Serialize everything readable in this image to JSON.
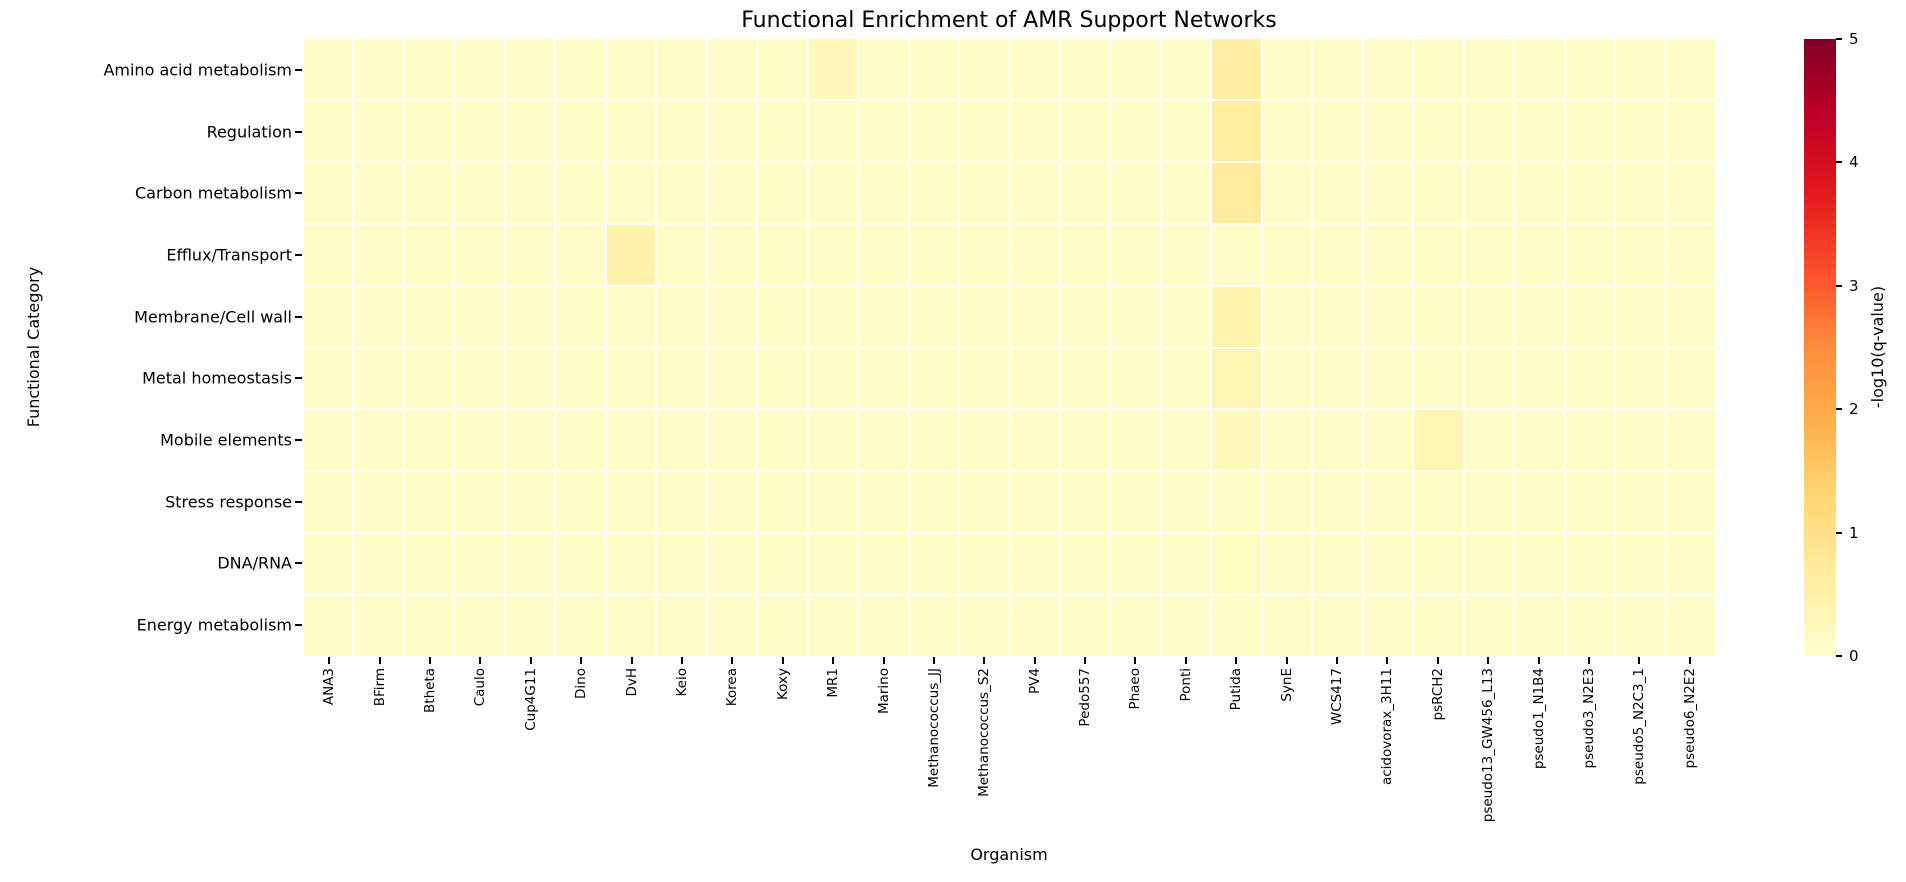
{
  "figure": {
    "background": "#ffffff",
    "text_color": "#000000"
  },
  "chart_data": {
    "type": "heatmap",
    "title": "Functional Enrichment of AMR Support Networks",
    "xlabel": "Organism",
    "ylabel": "Functional Category",
    "x_categories": [
      "ANA3",
      "BFirm",
      "Btheta",
      "Caulo",
      "Cup4G11",
      "Dino",
      "DvH",
      "Keio",
      "Korea",
      "Koxy",
      "MR1",
      "Marino",
      "Methanococcus_JJ",
      "Methanococcus_S2",
      "PV4",
      "Pedo557",
      "Phaeo",
      "Ponti",
      "Putida",
      "SynE",
      "WCS417",
      "acidovorax_3H11",
      "psRCH2",
      "pseudo13_GW456_L13",
      "pseudo1_N1B4",
      "pseudo3_N2E3",
      "pseudo5_N2C3_1",
      "pseudo6_N2E2"
    ],
    "y_categories": [
      "Amino acid metabolism",
      "Regulation",
      "Carbon metabolism",
      "Efflux/Transport",
      "Membrane/Cell wall",
      "Metal homeostasis",
      "Mobile elements",
      "Stress response",
      "DNA/RNA",
      "Energy metabolism"
    ],
    "values": [
      [
        0.1,
        0.1,
        0.1,
        0.1,
        0.1,
        0.1,
        0.1,
        0.1,
        0.1,
        0.1,
        0.25,
        0.1,
        0.1,
        0.1,
        0.1,
        0.1,
        0.1,
        0.1,
        0.58,
        0.1,
        0.1,
        0.1,
        0.1,
        0.1,
        0.1,
        0.1,
        0.1,
        0.1
      ],
      [
        0.1,
        0.1,
        0.1,
        0.1,
        0.1,
        0.1,
        0.1,
        0.1,
        0.1,
        0.1,
        0.1,
        0.1,
        0.1,
        0.1,
        0.1,
        0.1,
        0.1,
        0.1,
        0.62,
        0.1,
        0.1,
        0.1,
        0.1,
        0.1,
        0.1,
        0.1,
        0.1,
        0.1
      ],
      [
        0.1,
        0.1,
        0.1,
        0.1,
        0.1,
        0.1,
        0.1,
        0.1,
        0.1,
        0.1,
        0.1,
        0.1,
        0.1,
        0.1,
        0.1,
        0.1,
        0.1,
        0.1,
        0.68,
        0.1,
        0.1,
        0.1,
        0.1,
        0.1,
        0.1,
        0.1,
        0.1,
        0.1
      ],
      [
        0.1,
        0.1,
        0.1,
        0.1,
        0.1,
        0.1,
        0.5,
        0.1,
        0.1,
        0.1,
        0.1,
        0.1,
        0.1,
        0.1,
        0.1,
        0.1,
        0.1,
        0.1,
        0.1,
        0.1,
        0.1,
        0.1,
        0.1,
        0.1,
        0.1,
        0.1,
        0.1,
        0.1
      ],
      [
        0.1,
        0.1,
        0.1,
        0.1,
        0.1,
        0.1,
        0.1,
        0.1,
        0.1,
        0.1,
        0.1,
        0.1,
        0.1,
        0.1,
        0.1,
        0.1,
        0.1,
        0.1,
        0.42,
        0.1,
        0.1,
        0.1,
        0.1,
        0.1,
        0.1,
        0.1,
        0.1,
        0.1
      ],
      [
        0.1,
        0.1,
        0.1,
        0.1,
        0.1,
        0.1,
        0.1,
        0.1,
        0.1,
        0.1,
        0.1,
        0.1,
        0.1,
        0.1,
        0.1,
        0.1,
        0.1,
        0.1,
        0.36,
        0.1,
        0.1,
        0.1,
        0.1,
        0.1,
        0.1,
        0.1,
        0.1,
        0.1
      ],
      [
        0.1,
        0.1,
        0.1,
        0.1,
        0.1,
        0.1,
        0.1,
        0.1,
        0.1,
        0.1,
        0.1,
        0.1,
        0.1,
        0.1,
        0.1,
        0.1,
        0.1,
        0.1,
        0.2,
        0.1,
        0.1,
        0.1,
        0.38,
        0.1,
        0.1,
        0.1,
        0.1,
        0.1
      ],
      [
        0.1,
        0.1,
        0.1,
        0.1,
        0.1,
        0.1,
        0.1,
        0.1,
        0.1,
        0.1,
        0.1,
        0.1,
        0.1,
        0.1,
        0.1,
        0.1,
        0.1,
        0.1,
        0.1,
        0.1,
        0.1,
        0.1,
        0.1,
        0.1,
        0.1,
        0.1,
        0.1,
        0.1
      ],
      [
        0.1,
        0.1,
        0.1,
        0.1,
        0.1,
        0.1,
        0.1,
        0.1,
        0.1,
        0.1,
        0.1,
        0.1,
        0.1,
        0.1,
        0.1,
        0.1,
        0.1,
        0.1,
        0.18,
        0.1,
        0.1,
        0.1,
        0.1,
        0.1,
        0.1,
        0.1,
        0.1,
        0.1
      ],
      [
        0.1,
        0.1,
        0.1,
        0.1,
        0.1,
        0.1,
        0.1,
        0.1,
        0.1,
        0.1,
        0.1,
        0.1,
        0.1,
        0.1,
        0.1,
        0.1,
        0.1,
        0.1,
        0.1,
        0.1,
        0.1,
        0.1,
        0.1,
        0.1,
        0.1,
        0.1,
        0.1,
        0.1
      ]
    ],
    "vmin": 0,
    "vmax": 5,
    "grid": false,
    "cell_gap_color": "#ffffff",
    "colormap_name": "YlOrRd",
    "colormap_stops": [
      [
        0.0,
        "#ffffcc"
      ],
      [
        0.125,
        "#ffeda0"
      ],
      [
        0.25,
        "#fed976"
      ],
      [
        0.375,
        "#feb24c"
      ],
      [
        0.5,
        "#fd8d3c"
      ],
      [
        0.625,
        "#fc4e2a"
      ],
      [
        0.75,
        "#e31a1c"
      ],
      [
        0.875,
        "#bd0026"
      ],
      [
        1.0,
        "#800026"
      ]
    ],
    "colorbar": {
      "label": "-log10(q-value)",
      "ticks": [
        "0",
        "1",
        "2",
        "3",
        "4",
        "5"
      ],
      "position": "right"
    }
  }
}
